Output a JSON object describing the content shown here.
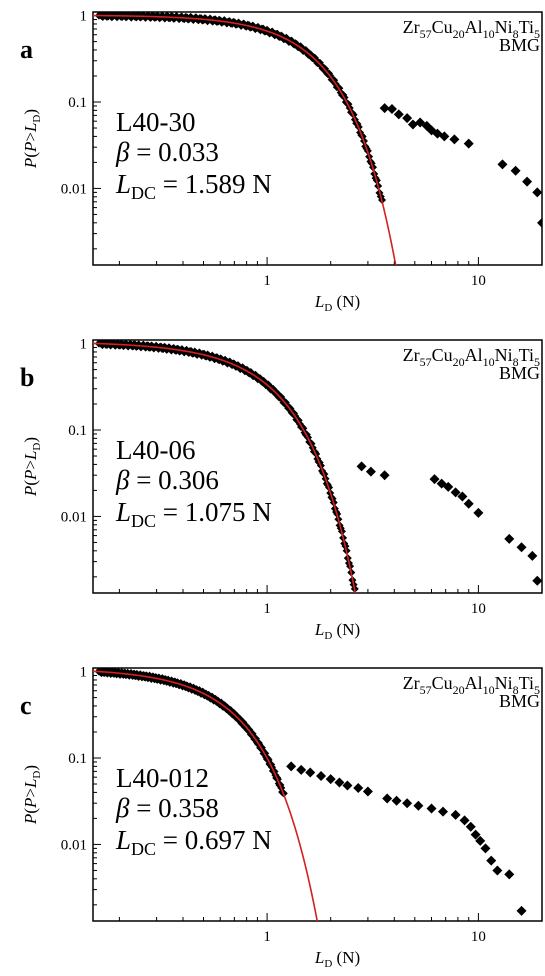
{
  "figure": {
    "ylabel": "P(P>L_D)",
    "xlabel": "L_D (N)",
    "material_line1": "Zr57Cu20Al10Ni8Ti5",
    "material_line2": "BMG",
    "colors": {
      "data": "#000000",
      "fit": "#d42020",
      "axes": "#000000"
    }
  },
  "chart_data": [
    {
      "type": "scatter",
      "panel": "a",
      "xscale": "log",
      "yscale": "log",
      "xlim": [
        0.15,
        20
      ],
      "ylim": [
        0.0013,
        1.1
      ],
      "xticks": [
        {
          "v": 1,
          "label": "1"
        },
        {
          "v": 10,
          "label": "10"
        }
      ],
      "yticks": [
        {
          "v": 1,
          "label": "1"
        },
        {
          "v": 0.1,
          "label": "0.1"
        },
        {
          "v": 0.01,
          "label": "0.01"
        }
      ],
      "sample": "L40-30",
      "beta_text": "β = 0.033",
      "ldc_text": "L",
      "ldc_sub": "DC",
      "ldc_value": " = 1.589 N",
      "beta": 0.033,
      "ldc": 1.589,
      "dense_range": [
        0.16,
        3.5
      ],
      "tail": [
        [
          3.6,
          0.085
        ],
        [
          3.9,
          0.083
        ],
        [
          4.2,
          0.072
        ],
        [
          4.6,
          0.065
        ],
        [
          4.9,
          0.055
        ],
        [
          5.3,
          0.058
        ],
        [
          5.7,
          0.053
        ],
        [
          6.0,
          0.047
        ],
        [
          6.4,
          0.043
        ],
        [
          6.9,
          0.04
        ],
        [
          7.7,
          0.037
        ],
        [
          9.0,
          0.033
        ],
        [
          13.0,
          0.019
        ],
        [
          15.0,
          0.016
        ],
        [
          17.0,
          0.012
        ],
        [
          19.0,
          0.009
        ],
        [
          20.0,
          0.004
        ]
      ]
    },
    {
      "type": "scatter",
      "panel": "b",
      "xscale": "log",
      "yscale": "log",
      "xlim": [
        0.15,
        20
      ],
      "ylim": [
        0.0013,
        1.1
      ],
      "xticks": [
        {
          "v": 1,
          "label": "1"
        },
        {
          "v": 10,
          "label": "10"
        }
      ],
      "yticks": [
        {
          "v": 1,
          "label": "1"
        },
        {
          "v": 0.1,
          "label": "0.1"
        },
        {
          "v": 0.01,
          "label": "0.01"
        }
      ],
      "sample": "L40-06",
      "beta_text": "β = 0.306",
      "ldc_text": "L",
      "ldc_sub": "DC",
      "ldc_value": " = 1.075 N",
      "beta": 0.306,
      "ldc": 1.075,
      "dense_range": [
        0.16,
        2.6
      ],
      "tail": [
        [
          2.8,
          0.038
        ],
        [
          3.1,
          0.033
        ],
        [
          3.6,
          0.03
        ],
        [
          6.2,
          0.027
        ],
        [
          6.7,
          0.024
        ],
        [
          7.2,
          0.022
        ],
        [
          7.8,
          0.019
        ],
        [
          8.4,
          0.017
        ],
        [
          9.0,
          0.014
        ],
        [
          10.0,
          0.011
        ],
        [
          14.0,
          0.0055
        ],
        [
          16.0,
          0.0044
        ],
        [
          18.0,
          0.0035
        ],
        [
          19.0,
          0.0018
        ]
      ]
    },
    {
      "type": "scatter",
      "panel": "c",
      "xscale": "log",
      "yscale": "log",
      "xlim": [
        0.15,
        20
      ],
      "ylim": [
        0.0013,
        1.1
      ],
      "xticks": [
        {
          "v": 1,
          "label": "1"
        },
        {
          "v": 10,
          "label": "10"
        }
      ],
      "yticks": [
        {
          "v": 1,
          "label": "1"
        },
        {
          "v": 0.1,
          "label": "0.1"
        },
        {
          "v": 0.01,
          "label": "0.01"
        }
      ],
      "sample": "L40-012",
      "beta_text": "β = 0.358",
      "ldc_text": "L",
      "ldc_sub": "DC",
      "ldc_value": " = 0.697 N",
      "beta": 0.358,
      "ldc": 0.697,
      "dense_range": [
        0.16,
        1.2
      ],
      "tail": [
        [
          1.3,
          0.08
        ],
        [
          1.45,
          0.073
        ],
        [
          1.6,
          0.068
        ],
        [
          1.8,
          0.062
        ],
        [
          2.0,
          0.057
        ],
        [
          2.2,
          0.052
        ],
        [
          2.4,
          0.048
        ],
        [
          2.7,
          0.045
        ],
        [
          3.0,
          0.041
        ],
        [
          3.7,
          0.034
        ],
        [
          4.1,
          0.032
        ],
        [
          4.6,
          0.03
        ],
        [
          5.2,
          0.028
        ],
        [
          6.0,
          0.026
        ],
        [
          6.8,
          0.024
        ],
        [
          7.8,
          0.022
        ],
        [
          8.6,
          0.019
        ],
        [
          9.2,
          0.016
        ],
        [
          9.7,
          0.013
        ],
        [
          10.2,
          0.011
        ],
        [
          10.8,
          0.009
        ],
        [
          11.5,
          0.0065
        ],
        [
          12.3,
          0.005
        ],
        [
          14.0,
          0.0045
        ],
        [
          16.0,
          0.0017
        ]
      ]
    }
  ]
}
